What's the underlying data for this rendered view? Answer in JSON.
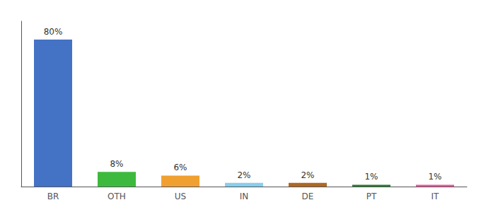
{
  "chart_data": {
    "type": "bar",
    "categories": [
      "BR",
      "OTH",
      "US",
      "IN",
      "DE",
      "PT",
      "IT"
    ],
    "values": [
      80,
      8,
      6,
      2,
      2,
      1,
      1
    ],
    "value_labels": [
      "80%",
      "8%",
      "6%",
      "2%",
      "2%",
      "1%",
      "1%"
    ],
    "colors": [
      "#4472c4",
      "#3dba3d",
      "#f0a030",
      "#87ceeb",
      "#b06820",
      "#2a7a2a",
      "#e8559a"
    ],
    "ylim": [
      0,
      90
    ],
    "grid": false,
    "tick_labels": "x",
    "data_labels": true
  }
}
